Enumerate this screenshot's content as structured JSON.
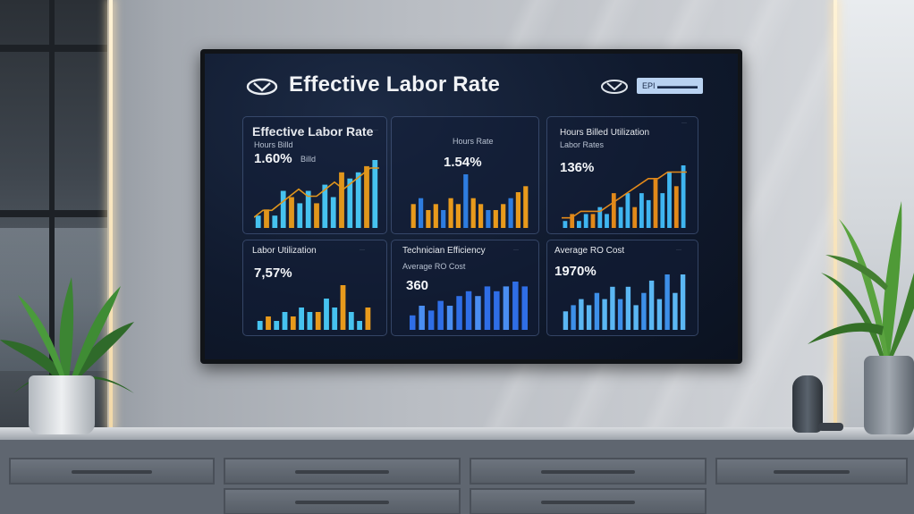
{
  "dashboard": {
    "title": "Effective Labor Rate",
    "badge": "EPI ▬▬▬▬▬",
    "panels": [
      {
        "title": "Effective Labor Rate",
        "subtitle": "Hours Billd",
        "value": "1.60%",
        "value_suffix": "Billd",
        "dot": "···"
      },
      {
        "title": "",
        "subtitle": "Hours Rate",
        "value": "1.54%",
        "dot": ""
      },
      {
        "title": "Hours Billed Utilization",
        "subtitle": "Labor Rates",
        "value": "136%",
        "dot": "···"
      },
      {
        "title": "Labor Utilization",
        "subtitle": "",
        "value": "7,57%",
        "dot": "···"
      },
      {
        "title": "Technician Efficiency",
        "subtitle": "Average RO Cost",
        "value": "360",
        "dot": "···"
      },
      {
        "title": "Average RO Cost",
        "subtitle": "",
        "value": "1970%",
        "dot": "···"
      }
    ]
  },
  "chart_data": [
    {
      "type": "bar",
      "values": [
        2,
        3,
        2,
        6,
        5,
        4,
        6,
        4,
        7,
        5,
        9,
        8,
        9,
        10,
        11
      ],
      "line": [
        1,
        2,
        2,
        3,
        4,
        5,
        4,
        4,
        5,
        6,
        5,
        6,
        7,
        8,
        8
      ],
      "colors": [
        "#46c2ef",
        "#e0961c"
      ]
    },
    {
      "type": "bar",
      "values": [
        4,
        5,
        3,
        4,
        3,
        5,
        4,
        9,
        5,
        4,
        3,
        3,
        4,
        5,
        6,
        7
      ],
      "colors": [
        "#e89a1c",
        "#2e7de0"
      ]
    },
    {
      "type": "bar",
      "values": [
        1,
        2,
        1,
        2,
        2,
        3,
        2,
        5,
        3,
        5,
        3,
        5,
        4,
        7,
        5,
        8,
        6,
        9
      ],
      "line": [
        1,
        1,
        2,
        2,
        2,
        3,
        4,
        5,
        6,
        7,
        7,
        8,
        8,
        8
      ],
      "colors": [
        "#3fb5f0",
        "#e2891a"
      ]
    },
    {
      "type": "bar",
      "values": [
        2,
        3,
        2,
        4,
        3,
        5,
        4,
        4,
        7,
        5,
        10,
        4,
        2,
        5
      ],
      "colors": [
        "#46c2ef",
        "#e89a1c"
      ]
    },
    {
      "type": "bar",
      "values": [
        3,
        5,
        4,
        6,
        5,
        7,
        8,
        7,
        9,
        8,
        9,
        10,
        9
      ],
      "colors": [
        "#2f6ee6",
        "#4a8ef2"
      ]
    },
    {
      "type": "bar",
      "values": [
        3,
        4,
        5,
        4,
        6,
        5,
        7,
        5,
        7,
        4,
        6,
        8,
        5,
        9,
        6,
        9
      ],
      "colors": [
        "#5bb7f3",
        "#3d8fe8"
      ]
    }
  ]
}
